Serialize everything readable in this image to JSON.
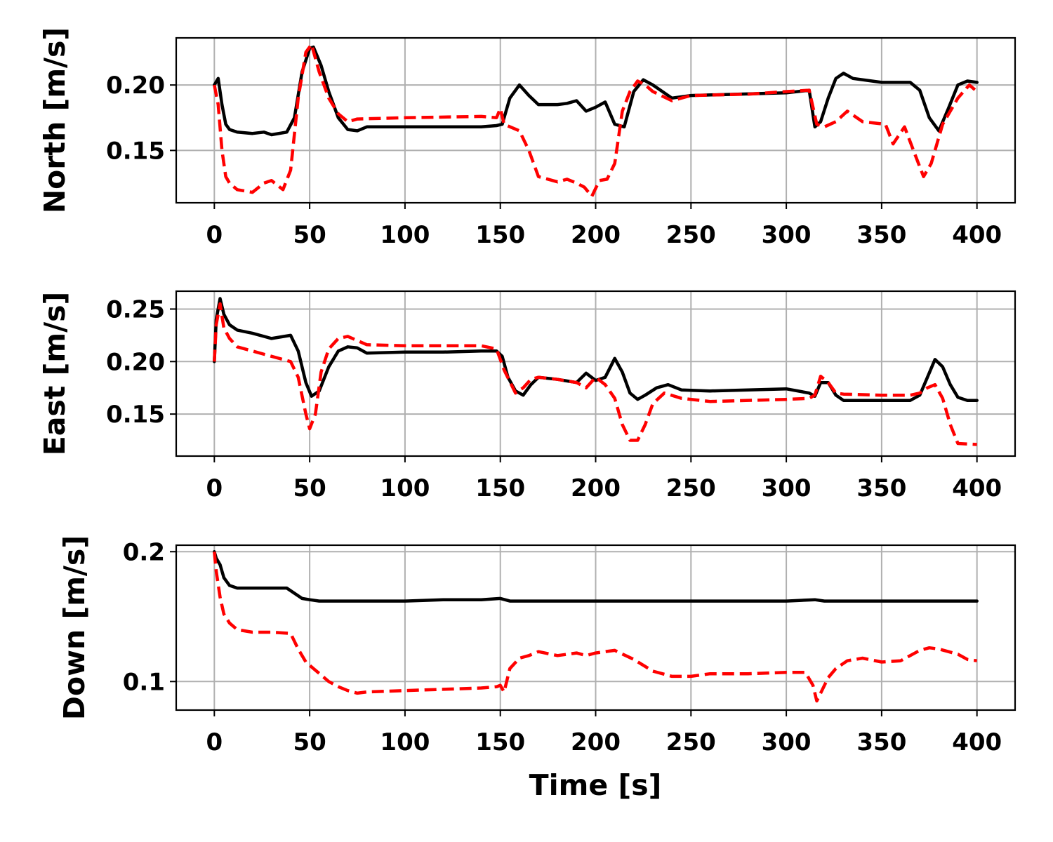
{
  "figure": {
    "xlabel": "Time [s]"
  },
  "chart_data": [
    {
      "type": "line",
      "ylabel": "North [m/s]",
      "xlim": [
        -20,
        420
      ],
      "ylim": [
        0.11,
        0.236
      ],
      "xticks": [
        0,
        50,
        100,
        150,
        200,
        250,
        300,
        350,
        400
      ],
      "yticks": [
        0.15,
        0.2
      ],
      "ytick_labels": [
        "0.15",
        "0.20"
      ],
      "grid": true,
      "series": [
        {
          "style": "solid",
          "color": "#000000",
          "x": [
            0,
            2,
            4,
            6,
            8,
            12,
            20,
            26,
            30,
            38,
            42,
            46,
            50,
            52,
            56,
            60,
            65,
            70,
            75,
            80,
            100,
            120,
            140,
            148,
            151,
            155,
            160,
            165,
            170,
            180,
            185,
            190,
            195,
            200,
            205,
            210,
            215,
            220,
            225,
            230,
            240,
            250,
            300,
            312,
            315,
            318,
            322,
            326,
            330,
            335,
            350,
            365,
            370,
            375,
            380,
            385,
            390,
            395,
            400
          ],
          "y": [
            0.2,
            0.205,
            0.185,
            0.17,
            0.166,
            0.164,
            0.163,
            0.164,
            0.162,
            0.164,
            0.175,
            0.21,
            0.228,
            0.229,
            0.215,
            0.195,
            0.175,
            0.166,
            0.165,
            0.168,
            0.168,
            0.168,
            0.168,
            0.169,
            0.17,
            0.19,
            0.2,
            0.192,
            0.185,
            0.185,
            0.186,
            0.188,
            0.18,
            0.183,
            0.187,
            0.17,
            0.168,
            0.195,
            0.204,
            0.2,
            0.19,
            0.192,
            0.194,
            0.196,
            0.168,
            0.172,
            0.19,
            0.205,
            0.209,
            0.205,
            0.202,
            0.202,
            0.196,
            0.175,
            0.165,
            0.182,
            0.2,
            0.203,
            0.202
          ]
        },
        {
          "style": "dashed",
          "color": "#ff0000",
          "x": [
            0,
            2,
            4,
            6,
            8,
            12,
            20,
            26,
            30,
            36,
            40,
            44,
            48,
            51,
            55,
            60,
            65,
            70,
            75,
            100,
            140,
            148,
            150,
            152,
            160,
            165,
            170,
            180,
            185,
            190,
            194,
            198,
            202,
            206,
            210,
            214,
            218,
            222,
            226,
            230,
            240,
            250,
            280,
            300,
            312,
            316,
            320,
            326,
            332,
            340,
            352,
            356,
            362,
            368,
            372,
            376,
            382,
            390,
            396,
            400
          ],
          "y": [
            0.2,
            0.185,
            0.15,
            0.13,
            0.125,
            0.12,
            0.118,
            0.125,
            0.127,
            0.12,
            0.135,
            0.19,
            0.225,
            0.231,
            0.21,
            0.19,
            0.178,
            0.172,
            0.174,
            0.175,
            0.176,
            0.175,
            0.182,
            0.17,
            0.165,
            0.15,
            0.13,
            0.126,
            0.128,
            0.125,
            0.122,
            0.115,
            0.127,
            0.128,
            0.14,
            0.18,
            0.195,
            0.203,
            0.2,
            0.195,
            0.188,
            0.192,
            0.193,
            0.195,
            0.196,
            0.17,
            0.168,
            0.172,
            0.18,
            0.172,
            0.17,
            0.155,
            0.168,
            0.145,
            0.13,
            0.14,
            0.17,
            0.19,
            0.2,
            0.195
          ]
        }
      ]
    },
    {
      "type": "line",
      "ylabel": "East [m/s]",
      "xlim": [
        -20,
        420
      ],
      "ylim": [
        0.11,
        0.267
      ],
      "xticks": [
        0,
        50,
        100,
        150,
        200,
        250,
        300,
        350,
        400
      ],
      "yticks": [
        0.15,
        0.2,
        0.25
      ],
      "ytick_labels": [
        "0.15",
        "0.20",
        "0.25"
      ],
      "grid": true,
      "series": [
        {
          "style": "solid",
          "color": "#000000",
          "x": [
            0,
            1,
            3,
            5,
            8,
            12,
            20,
            30,
            40,
            44,
            48,
            51,
            55,
            60,
            65,
            70,
            75,
            80,
            100,
            120,
            140,
            148,
            151,
            154,
            158,
            162,
            166,
            170,
            180,
            190,
            195,
            200,
            205,
            210,
            214,
            218,
            222,
            226,
            232,
            238,
            245,
            260,
            300,
            312,
            315,
            318,
            322,
            326,
            330,
            350,
            365,
            370,
            374,
            378,
            382,
            386,
            390,
            395,
            400
          ],
          "y": [
            0.2,
            0.24,
            0.26,
            0.245,
            0.235,
            0.23,
            0.227,
            0.222,
            0.225,
            0.21,
            0.18,
            0.167,
            0.172,
            0.195,
            0.21,
            0.214,
            0.213,
            0.208,
            0.209,
            0.209,
            0.21,
            0.21,
            0.205,
            0.185,
            0.172,
            0.168,
            0.178,
            0.185,
            0.183,
            0.18,
            0.189,
            0.182,
            0.185,
            0.203,
            0.19,
            0.17,
            0.164,
            0.168,
            0.175,
            0.178,
            0.173,
            0.172,
            0.174,
            0.17,
            0.167,
            0.18,
            0.18,
            0.168,
            0.163,
            0.163,
            0.163,
            0.168,
            0.185,
            0.202,
            0.195,
            0.178,
            0.166,
            0.163,
            0.163
          ]
        },
        {
          "style": "dashed",
          "color": "#ff0000",
          "x": [
            0,
            1,
            3,
            5,
            8,
            12,
            20,
            30,
            40,
            44,
            48,
            50,
            53,
            56,
            60,
            65,
            70,
            75,
            80,
            100,
            120,
            140,
            148,
            152,
            158,
            162,
            166,
            170,
            180,
            190,
            195,
            200,
            205,
            210,
            214,
            218,
            222,
            226,
            230,
            236,
            245,
            260,
            300,
            312,
            315,
            318,
            322,
            326,
            330,
            350,
            365,
            370,
            374,
            378,
            382,
            386,
            390,
            400
          ],
          "y": [
            0.2,
            0.235,
            0.255,
            0.232,
            0.222,
            0.214,
            0.21,
            0.205,
            0.2,
            0.185,
            0.15,
            0.136,
            0.15,
            0.19,
            0.212,
            0.222,
            0.224,
            0.22,
            0.216,
            0.215,
            0.215,
            0.215,
            0.212,
            0.192,
            0.17,
            0.175,
            0.183,
            0.185,
            0.183,
            0.18,
            0.175,
            0.185,
            0.178,
            0.165,
            0.14,
            0.125,
            0.125,
            0.14,
            0.16,
            0.17,
            0.165,
            0.162,
            0.164,
            0.165,
            0.168,
            0.186,
            0.18,
            0.17,
            0.169,
            0.168,
            0.168,
            0.17,
            0.175,
            0.178,
            0.165,
            0.14,
            0.122,
            0.121
          ]
        }
      ]
    },
    {
      "type": "line",
      "ylabel": "Down [m/s]",
      "xlim": [
        -20,
        420
      ],
      "ylim": [
        0.078,
        0.205
      ],
      "xticks": [
        0,
        50,
        100,
        150,
        200,
        250,
        300,
        350,
        400
      ],
      "yticks": [
        0.1,
        0.2
      ],
      "ytick_labels": [
        "0.1",
        "0.2"
      ],
      "grid": true,
      "series": [
        {
          "style": "solid",
          "color": "#000000",
          "x": [
            0,
            1,
            3,
            5,
            8,
            12,
            20,
            30,
            38,
            42,
            46,
            50,
            55,
            60,
            80,
            100,
            120,
            140,
            150,
            155,
            200,
            250,
            300,
            315,
            320,
            350,
            400
          ],
          "y": [
            0.2,
            0.195,
            0.19,
            0.18,
            0.174,
            0.172,
            0.172,
            0.172,
            0.172,
            0.168,
            0.164,
            0.163,
            0.162,
            0.162,
            0.162,
            0.162,
            0.163,
            0.163,
            0.164,
            0.162,
            0.162,
            0.162,
            0.162,
            0.163,
            0.162,
            0.162,
            0.162
          ]
        },
        {
          "style": "dashed",
          "color": "#ff0000",
          "x": [
            0,
            1,
            3,
            5,
            8,
            12,
            20,
            30,
            40,
            44,
            48,
            52,
            56,
            60,
            65,
            70,
            75,
            80,
            100,
            120,
            140,
            148,
            150,
            152,
            155,
            160,
            165,
            170,
            180,
            190,
            195,
            200,
            210,
            220,
            230,
            240,
            250,
            260,
            280,
            300,
            310,
            314,
            316,
            318,
            322,
            326,
            332,
            340,
            350,
            360,
            370,
            375,
            380,
            390,
            395,
            400
          ],
          "y": [
            0.2,
            0.185,
            0.165,
            0.152,
            0.145,
            0.14,
            0.138,
            0.138,
            0.137,
            0.125,
            0.115,
            0.11,
            0.105,
            0.1,
            0.096,
            0.093,
            0.091,
            0.092,
            0.093,
            0.094,
            0.095,
            0.096,
            0.097,
            0.092,
            0.11,
            0.118,
            0.12,
            0.123,
            0.12,
            0.122,
            0.12,
            0.122,
            0.124,
            0.117,
            0.108,
            0.104,
            0.104,
            0.106,
            0.106,
            0.107,
            0.107,
            0.097,
            0.085,
            0.091,
            0.103,
            0.11,
            0.116,
            0.118,
            0.115,
            0.116,
            0.124,
            0.126,
            0.125,
            0.121,
            0.117,
            0.116
          ]
        }
      ]
    }
  ]
}
